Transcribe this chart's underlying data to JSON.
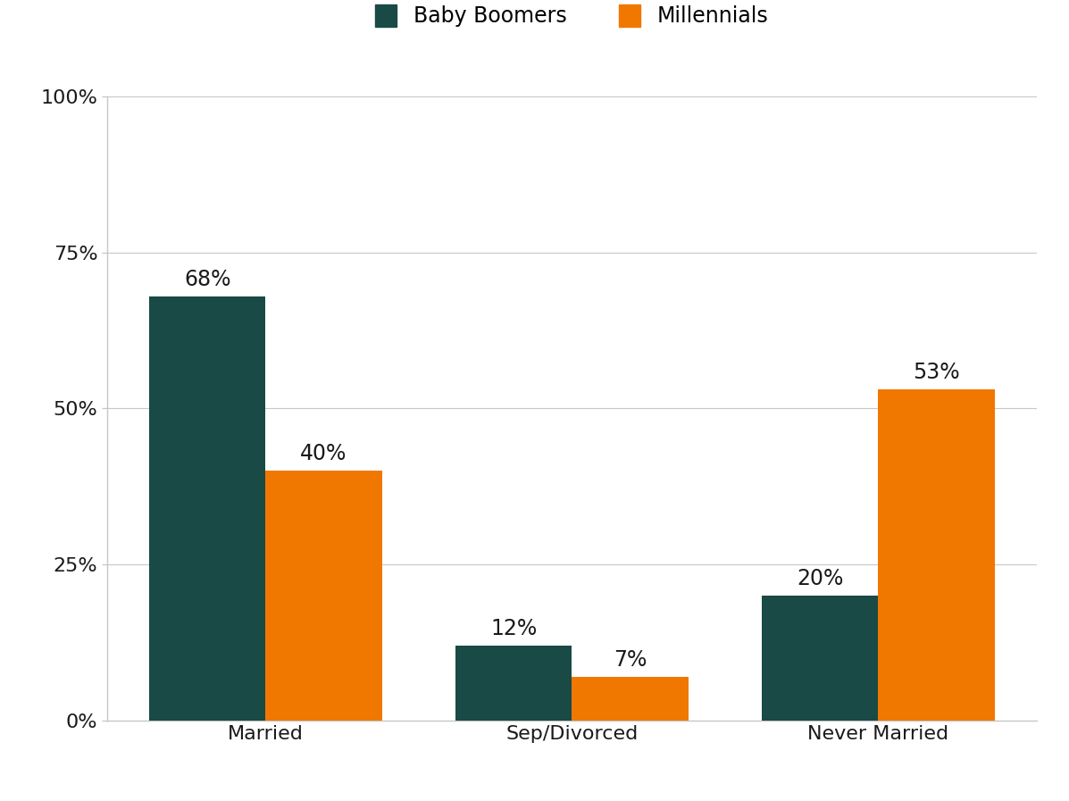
{
  "categories": [
    "Married",
    "Sep/Divorced",
    "Never Married"
  ],
  "baby_boomers": [
    68,
    12,
    20
  ],
  "millennials": [
    40,
    7,
    53
  ],
  "baby_boomer_color": "#1a4a45",
  "millennial_color": "#f07800",
  "bar_width": 0.38,
  "ylim": [
    0,
    100
  ],
  "yticks": [
    0,
    25,
    50,
    75,
    100
  ],
  "ytick_labels": [
    "0%",
    "25%",
    "50%",
    "75%",
    "100%"
  ],
  "legend_labels": [
    "Baby Boomers",
    "Millennials"
  ],
  "tick_fontsize": 16,
  "legend_fontsize": 17,
  "value_fontsize": 17,
  "background_color": "#ffffff",
  "grid_color": "#c8c8c8",
  "text_color": "#1a1a1a"
}
